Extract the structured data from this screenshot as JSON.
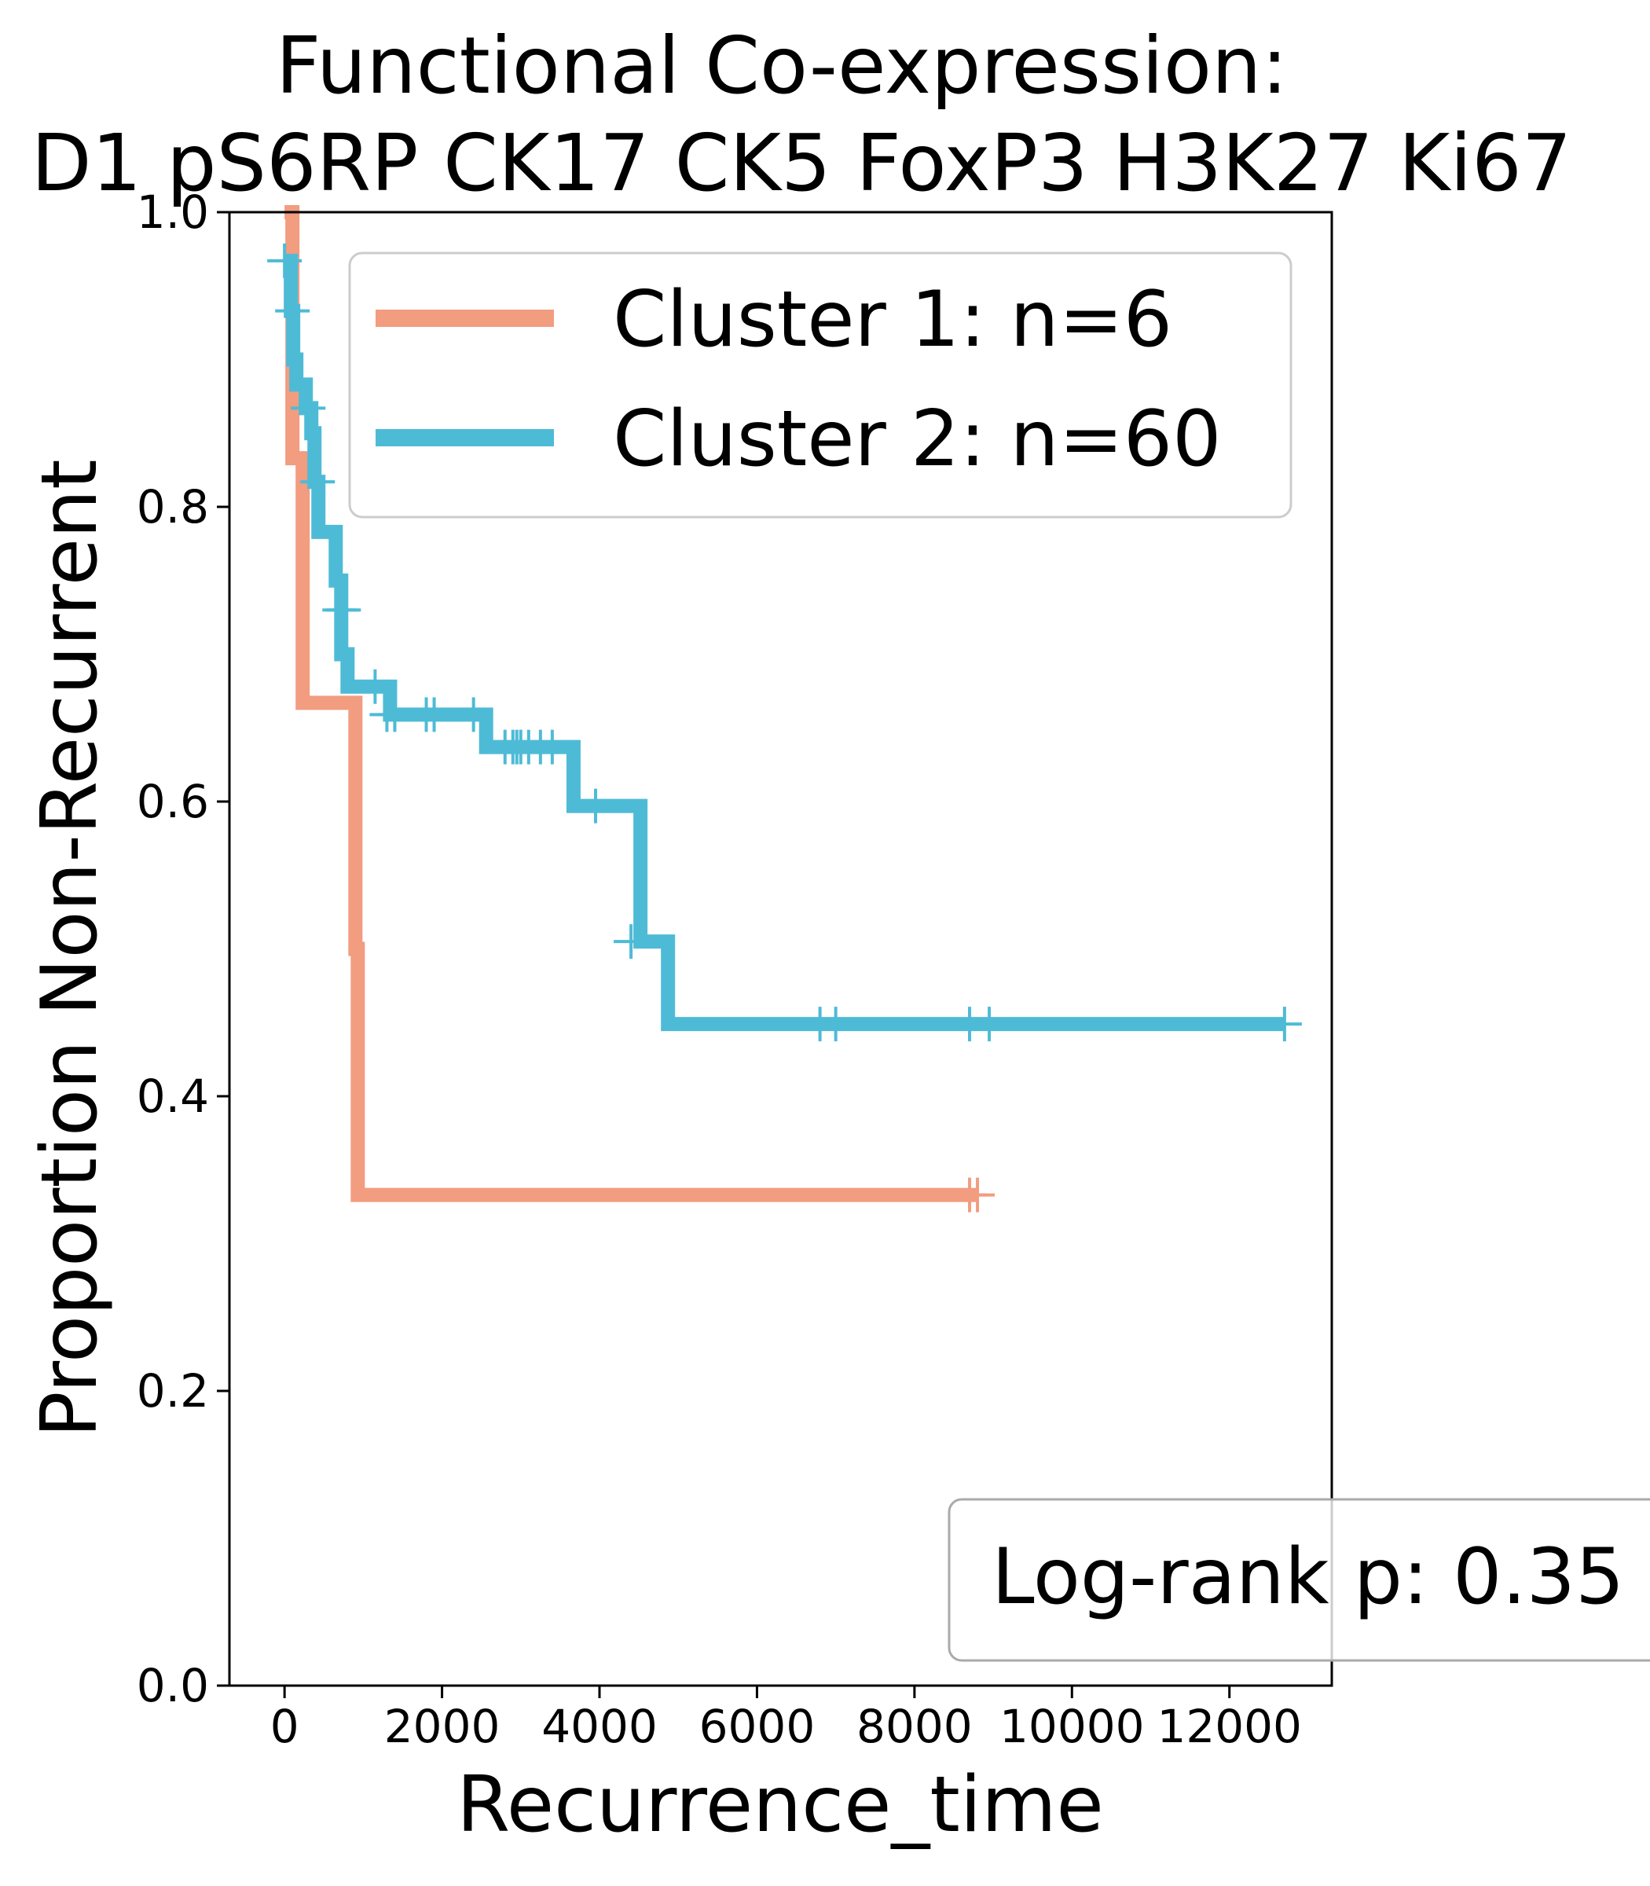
{
  "chart_data": {
    "type": "line",
    "subtype": "kaplan-meier",
    "title_line1": "Functional Co-expression:",
    "title_line2": "D1 pS6RP CK17 CK5 FoxP3 H3K27 Ki67",
    "xlabel": "Recurrence_time",
    "ylabel": "Proportion Non-Recurrent",
    "xlim": [
      -700,
      13300
    ],
    "ylim": [
      0,
      1.0
    ],
    "xticks": [
      0,
      2000,
      4000,
      6000,
      8000,
      10000,
      12000
    ],
    "xtick_labels": [
      "0",
      "2000",
      "4000",
      "6000",
      "8000",
      "10000",
      "12000"
    ],
    "yticks": [
      0.0,
      0.2,
      0.4,
      0.6,
      0.8,
      1.0
    ],
    "ytick_labels": [
      "0.0",
      "0.2",
      "0.4",
      "0.6",
      "0.8",
      "1.0"
    ],
    "grid": false,
    "legend_position": "top-right",
    "annotation": "Log-rank p: 0.35",
    "series": [
      {
        "name": "Cluster 1: n=6",
        "color": "#F29C80",
        "steps": [
          [
            0,
            1.0
          ],
          [
            100,
            0.833
          ],
          [
            230,
            0.667
          ],
          [
            900,
            0.5
          ],
          [
            930,
            0.333
          ],
          [
            8800,
            0.333
          ]
        ],
        "censored": [
          [
            8700,
            0.333
          ],
          [
            8800,
            0.333
          ]
        ]
      },
      {
        "name": "Cluster 2: n=60",
        "color": "#4EBBD6",
        "steps": [
          [
            0,
            0.967
          ],
          [
            80,
            0.933
          ],
          [
            110,
            0.9
          ],
          [
            150,
            0.883
          ],
          [
            270,
            0.867
          ],
          [
            340,
            0.85
          ],
          [
            380,
            0.817
          ],
          [
            430,
            0.783
          ],
          [
            650,
            0.75
          ],
          [
            720,
            0.7
          ],
          [
            800,
            0.678
          ],
          [
            1340,
            0.659
          ],
          [
            2560,
            0.637
          ],
          [
            3670,
            0.597
          ],
          [
            4520,
            0.505
          ],
          [
            4870,
            0.449
          ],
          [
            12700,
            0.449
          ]
        ],
        "censored": [
          [
            0,
            0.967
          ],
          [
            100,
            0.933
          ],
          [
            300,
            0.867
          ],
          [
            420,
            0.817
          ],
          [
            700,
            0.73
          ],
          [
            750,
            0.73
          ],
          [
            1150,
            0.678
          ],
          [
            1300,
            0.659
          ],
          [
            1400,
            0.659
          ],
          [
            1800,
            0.659
          ],
          [
            1900,
            0.659
          ],
          [
            2400,
            0.659
          ],
          [
            2800,
            0.637
          ],
          [
            2900,
            0.637
          ],
          [
            2950,
            0.637
          ],
          [
            3000,
            0.637
          ],
          [
            3100,
            0.637
          ],
          [
            3250,
            0.637
          ],
          [
            3400,
            0.637
          ],
          [
            3950,
            0.597
          ],
          [
            4400,
            0.505
          ],
          [
            6800,
            0.449
          ],
          [
            7000,
            0.449
          ],
          [
            8700,
            0.449
          ],
          [
            8950,
            0.449
          ],
          [
            12700,
            0.449
          ]
        ]
      }
    ]
  }
}
